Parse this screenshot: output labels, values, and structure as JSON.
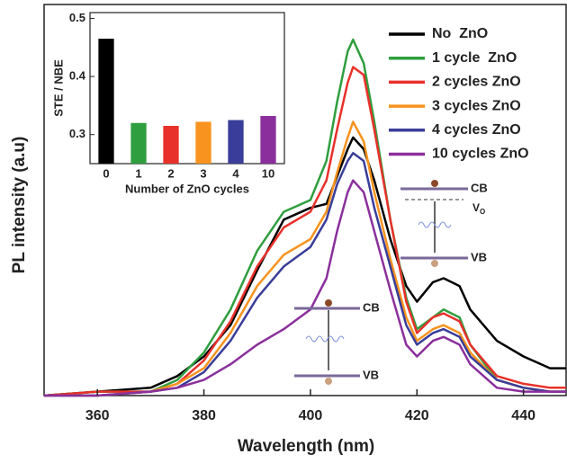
{
  "chart_data": [
    {
      "type": "line",
      "x_label": "Wavelength (nm)",
      "y_label": "PL intensity (a.u)",
      "x": [
        350,
        360,
        370,
        375,
        380,
        385,
        390,
        395,
        400,
        403,
        405,
        407,
        408,
        410,
        412,
        415,
        418,
        420,
        423,
        425,
        428,
        430,
        435,
        440,
        445,
        448
      ],
      "xlim": [
        350,
        448
      ],
      "xticks": [
        360,
        380,
        400,
        420,
        440
      ],
      "ylim": [
        0,
        1
      ],
      "series": [
        {
          "name": "No  ZnO",
          "color": "#000000",
          "values": [
            0,
            0.01,
            0.02,
            0.05,
            0.1,
            0.18,
            0.32,
            0.45,
            0.48,
            0.49,
            0.56,
            0.63,
            0.66,
            0.63,
            0.55,
            0.4,
            0.28,
            0.24,
            0.29,
            0.3,
            0.28,
            0.22,
            0.14,
            0.1,
            0.07,
            0.07
          ]
        },
        {
          "name": "1 cycle  ZnO",
          "color": "#2f9e3f",
          "values": [
            0,
            0.01,
            0.01,
            0.04,
            0.11,
            0.22,
            0.37,
            0.47,
            0.5,
            0.6,
            0.75,
            0.88,
            0.91,
            0.85,
            0.7,
            0.45,
            0.25,
            0.17,
            0.2,
            0.22,
            0.2,
            0.13,
            0.04,
            0.02,
            0.01,
            0.01
          ]
        },
        {
          "name": "2 cycles ZnO",
          "color": "#e8312a",
          "values": [
            0,
            0.01,
            0.01,
            0.03,
            0.09,
            0.19,
            0.33,
            0.43,
            0.47,
            0.55,
            0.68,
            0.8,
            0.84,
            0.82,
            0.68,
            0.45,
            0.24,
            0.16,
            0.2,
            0.21,
            0.19,
            0.13,
            0.05,
            0.03,
            0.02,
            0.02
          ]
        },
        {
          "name": "3 cycles ZnO",
          "color": "#f7931e",
          "values": [
            0,
            0,
            0.01,
            0.03,
            0.07,
            0.16,
            0.28,
            0.36,
            0.4,
            0.47,
            0.57,
            0.66,
            0.7,
            0.65,
            0.52,
            0.35,
            0.2,
            0.14,
            0.17,
            0.18,
            0.16,
            0.11,
            0.04,
            0.02,
            0.01,
            0.01
          ]
        },
        {
          "name": "4 cycles ZnO",
          "color": "#3a3d99",
          "values": [
            0,
            0,
            0.01,
            0.02,
            0.06,
            0.14,
            0.25,
            0.33,
            0.38,
            0.45,
            0.54,
            0.6,
            0.62,
            0.6,
            0.48,
            0.33,
            0.18,
            0.13,
            0.16,
            0.17,
            0.15,
            0.1,
            0.04,
            0.02,
            0.01,
            0.01
          ]
        },
        {
          "name": "10 cycles ZnO",
          "color": "#8b2f9c",
          "values": [
            0,
            0,
            0.01,
            0.02,
            0.04,
            0.08,
            0.13,
            0.17,
            0.22,
            0.3,
            0.42,
            0.52,
            0.55,
            0.52,
            0.42,
            0.27,
            0.13,
            0.1,
            0.14,
            0.15,
            0.13,
            0.08,
            0.02,
            0.01,
            0.01,
            0.01
          ]
        }
      ],
      "legend": "upper right",
      "annotations": [
        "CB",
        "VB",
        "CB",
        "V",
        "O",
        "VB"
      ]
    },
    {
      "type": "bar",
      "x_label": "Number of ZnO cycles",
      "y_label": "STE / NBE",
      "categories": [
        "0",
        "1",
        "2",
        "3",
        "4",
        "10"
      ],
      "values": [
        0.465,
        0.32,
        0.315,
        0.322,
        0.325,
        0.332
      ],
      "colors": [
        "#000000",
        "#2f9e3f",
        "#e8312a",
        "#f7931e",
        "#3a3d99",
        "#8b2f9c"
      ],
      "ylim": [
        0.25,
        0.51
      ],
      "yticks": [
        0.3,
        0.4,
        0.5
      ]
    }
  ]
}
